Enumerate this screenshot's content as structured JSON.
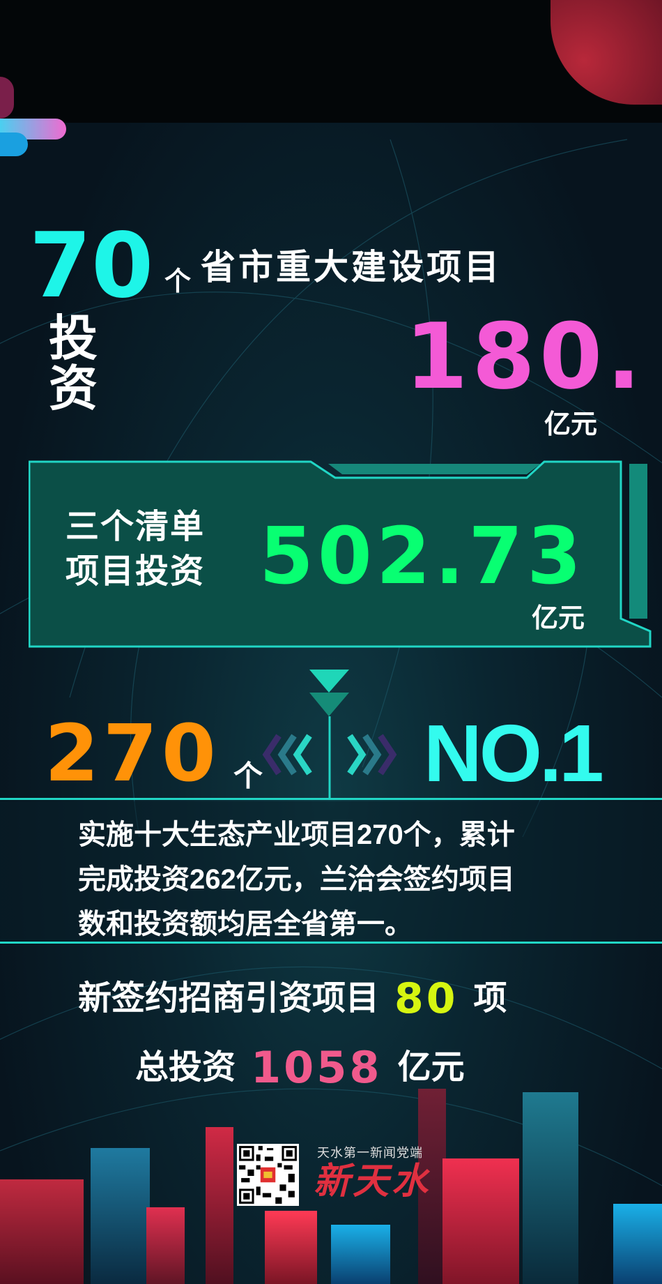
{
  "colors": {
    "cyan": "#1ef5e8",
    "pink": "#f45ad6",
    "green": "#08ff72",
    "orange": "#ff9208",
    "lime": "#d6f511",
    "rose": "#f05a8c",
    "teal_box": "#0b4f47",
    "accent_line": "#21d6c5",
    "brand_red": "#e03040"
  },
  "section1": {
    "count": "70",
    "count_unit": "个",
    "title": "省市重大建设项目",
    "invest_label": [
      "投",
      "资"
    ],
    "amount": "180.",
    "amount_unit": "亿元"
  },
  "section2": {
    "label_lines": [
      "三个清单",
      "项目投资"
    ],
    "amount": "502.73",
    "amount_unit": "亿元"
  },
  "section3": {
    "count": "270",
    "count_unit": "个",
    "rank": "NO.1",
    "description_lines": [
      "实施十大生态产业项目270个，累计",
      "完成投资262亿元，兰洽会签约项目",
      "数和投资额均居全省第一。"
    ]
  },
  "section4": {
    "line1_prefix": "新签约招商引资项目",
    "line1_value": "80",
    "line1_suffix": "项",
    "line2_prefix": "总投资",
    "line2_value": "1058",
    "line2_suffix": "亿元"
  },
  "footer": {
    "slogan": "天水第一新闻党端",
    "brand": "新天水",
    "qr_icon": "qr-code"
  }
}
